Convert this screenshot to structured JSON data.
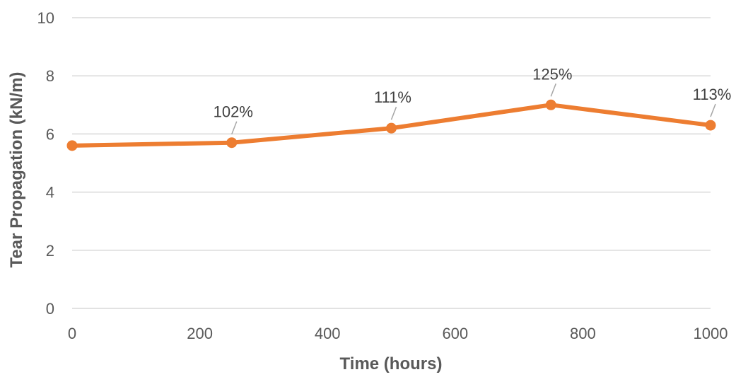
{
  "chart_data": {
    "type": "line",
    "xlabel": "Time (hours)",
    "ylabel": "Tear Propagation (kN/m)",
    "xlim": [
      0,
      1000
    ],
    "ylim": [
      0,
      10
    ],
    "xticks": [
      0,
      200,
      400,
      600,
      800,
      1000
    ],
    "yticks": [
      0,
      2,
      4,
      6,
      8,
      10
    ],
    "grid": true,
    "series": [
      {
        "color": "#ED7D31",
        "x": [
          0,
          250,
          500,
          750,
          1000
        ],
        "y": [
          5.6,
          5.7,
          6.2,
          7.0,
          6.3
        ],
        "labels": [
          "",
          "102%",
          "111%",
          "125%",
          "113%"
        ]
      }
    ]
  }
}
